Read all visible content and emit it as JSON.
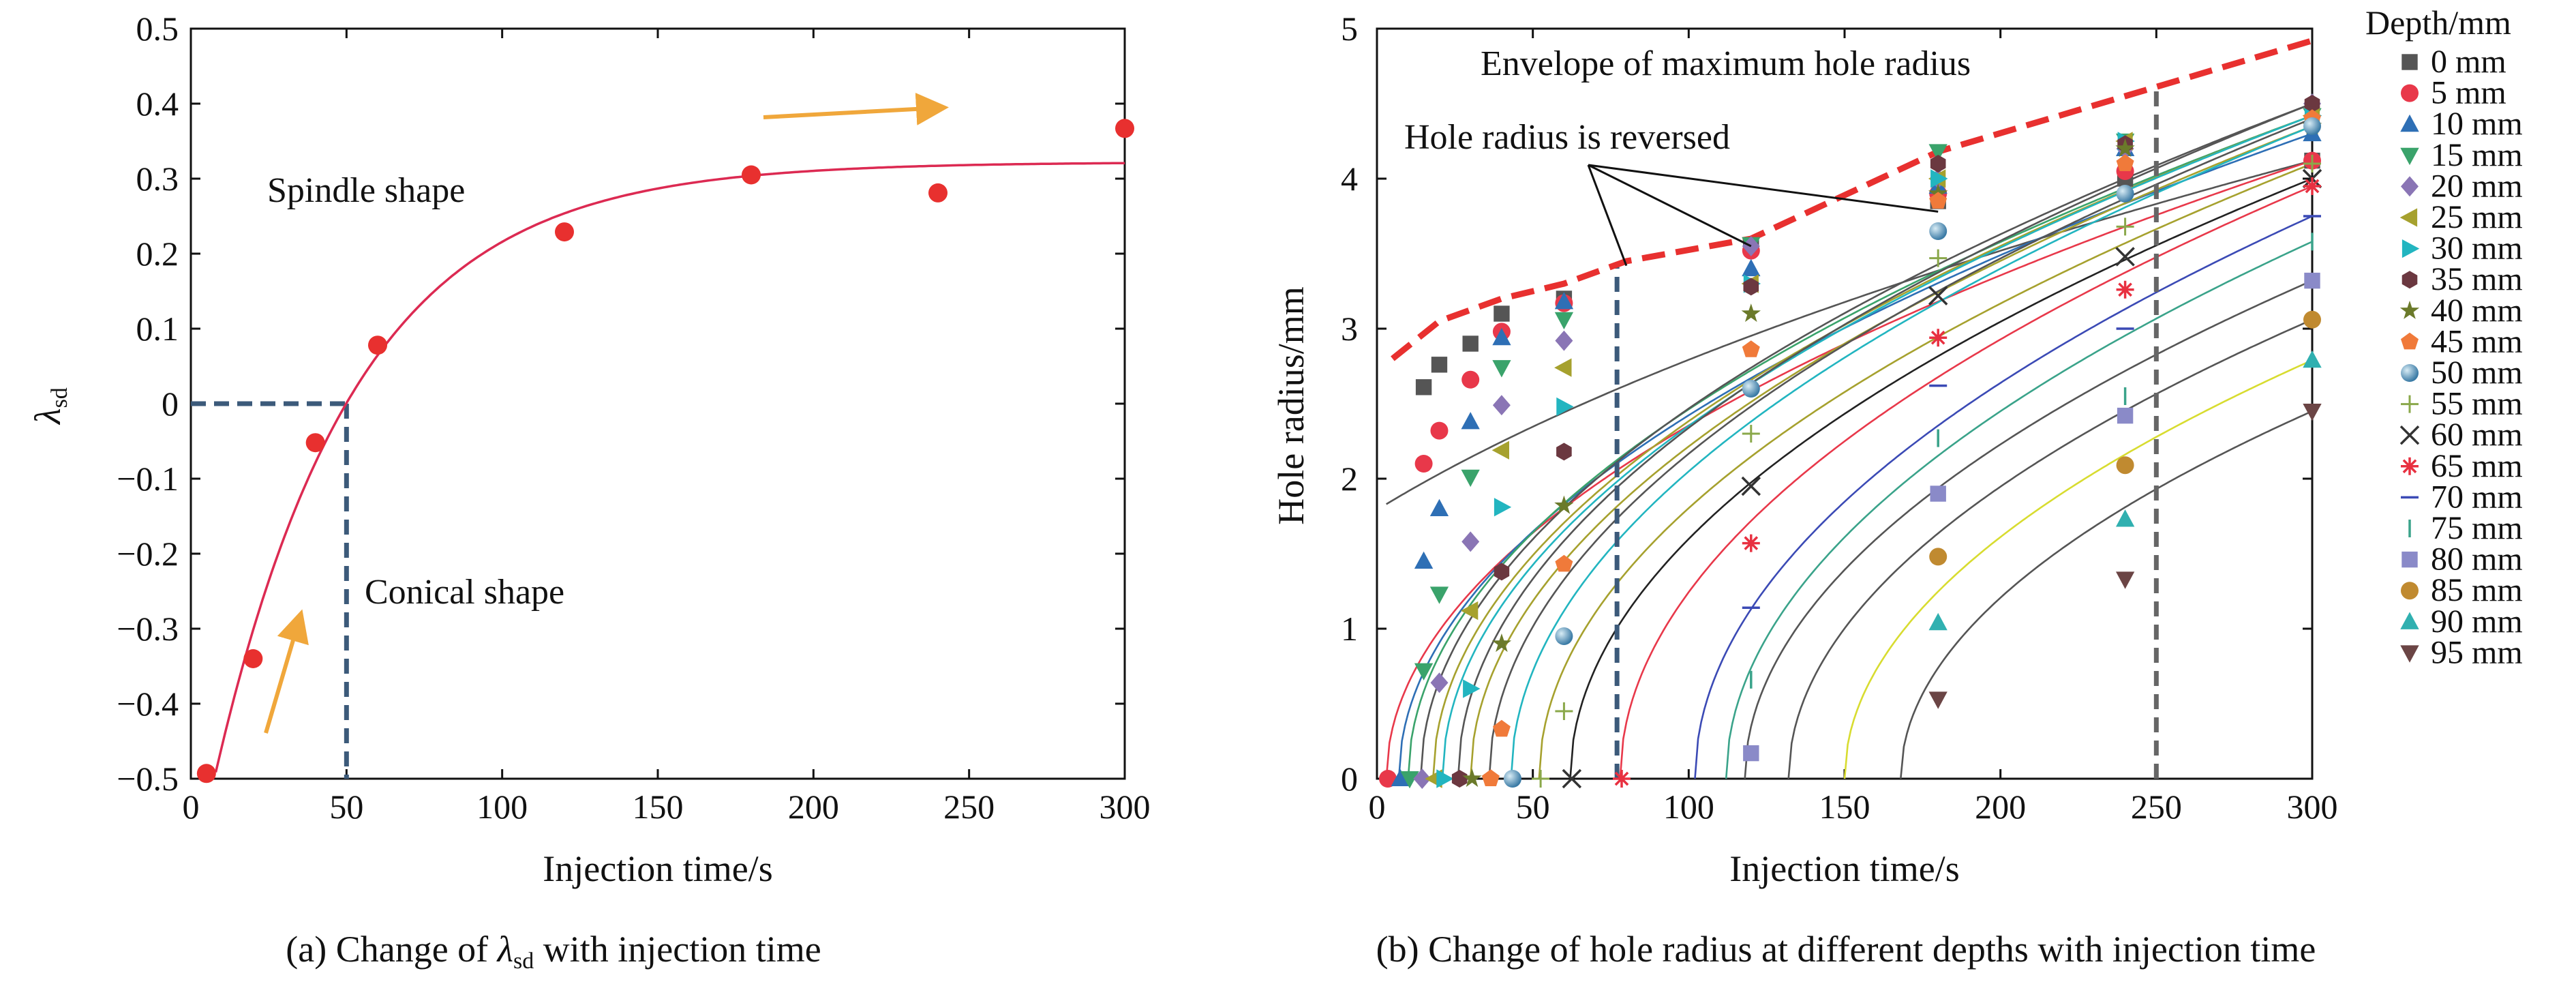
{
  "chart_data": [
    {
      "panel_id": "a",
      "type": "scatter",
      "caption_prefix": "(a) Change of ",
      "caption_symbol": "λ",
      "caption_sub": "sd",
      "caption_suffix": " with injection time",
      "xlabel": "Injection time/s",
      "ylabel_symbol": "λ",
      "ylabel_sub": "sd",
      "xlim": [
        0,
        300
      ],
      "ylim": [
        -0.5,
        0.5
      ],
      "xticks": [
        0,
        50,
        100,
        150,
        200,
        250,
        300
      ],
      "yticks": [
        -0.5,
        -0.4,
        -0.3,
        -0.2,
        -0.1,
        0,
        0.1,
        0.2,
        0.3,
        0.4,
        0.5
      ],
      "ytick_labels": [
        "−0.5",
        "−0.4",
        "−0.3",
        "−0.2",
        "−0.1",
        "0",
        "0.1",
        "0.2",
        "0.3",
        "0.4",
        "0.5"
      ],
      "points": {
        "x": [
          5,
          20,
          40,
          60,
          120,
          180,
          240,
          300
        ],
        "y": [
          -0.493,
          -0.34,
          -0.052,
          0.078,
          0.229,
          0.305,
          0.281,
          0.367
        ]
      },
      "fit_curve": {
        "formula": "y = 0.322 - 0.971*exp(-x/45.2)",
        "a": 0.322,
        "b": 0.971,
        "tau": 45.2,
        "color": "#dc2a52"
      },
      "point_color": "#e8302f",
      "dashed_color": "#3c5a7a",
      "threshold": {
        "x": 50,
        "y": 0
      },
      "arrow_color": "#f0a73b",
      "annotations": [
        "Spindle shape",
        "Conical shape"
      ],
      "grid": false
    },
    {
      "panel_id": "b",
      "type": "scatter",
      "caption": "(b) Change of hole radius at different depths with injection time",
      "xlabel": "Injection time/s",
      "ylabel": "Hole radius/mm",
      "xlim": [
        0,
        300
      ],
      "ylim": [
        0,
        5
      ],
      "xticks": [
        0,
        50,
        100,
        150,
        200,
        250,
        300
      ],
      "yticks": [
        0,
        1,
        2,
        3,
        4,
        5
      ],
      "legend_title": "Depth/mm",
      "legend_position": "right-outside",
      "time_points": [
        5,
        10,
        15,
        20,
        30,
        40,
        60,
        120,
        180,
        240,
        300
      ],
      "series": [
        {
          "name": "0 mm",
          "color": "#555555",
          "marker": "square",
          "curve_color": "#555555",
          "t0": -70,
          "values": [
            2.61,
            2.76,
            2.9,
            3.1,
            3.2,
            3.55,
            3.85,
            4.0,
            4.12
          ]
        },
        {
          "name": "5 mm",
          "color": "#e8384a",
          "marker": "circle",
          "curve_color": "#e8384a",
          "t0": 3,
          "values": [
            0,
            2.1,
            2.32,
            2.66,
            2.98,
            3.17,
            3.52,
            3.9,
            4.05,
            4.12
          ]
        },
        {
          "name": "10 mm",
          "color": "#2e6fb5",
          "marker": "triangle-up",
          "curve_color": "#2e6fb5",
          "t0": 7,
          "values": [
            0,
            1.45,
            1.8,
            2.38,
            2.94,
            3.18,
            3.4,
            3.95,
            4.2,
            4.3
          ]
        },
        {
          "name": "15 mm",
          "color": "#3aa36b",
          "marker": "triangle-down",
          "curve_color": "#3aa36b",
          "t0": 10,
          "values": [
            0,
            0.72,
            1.23,
            2.01,
            2.74,
            3.06,
            3.56,
            4.18,
            4.25,
            4.42
          ]
        },
        {
          "name": "20 mm",
          "color": "#8a75b5",
          "marker": "diamond",
          "curve_color": "#555555",
          "t0": 14,
          "values": [
            0,
            0.64,
            1.58,
            2.49,
            2.92,
            3.55,
            4.0,
            4.2,
            4.5
          ]
        },
        {
          "name": "25 mm",
          "color": "#a6a12e",
          "marker": "triangle-left",
          "curve_color": "#a6a12e",
          "t0": 18,
          "values": [
            0,
            1.12,
            2.19,
            2.74,
            3.3,
            4.0,
            4.25,
            4.42
          ]
        },
        {
          "name": "30 mm",
          "color": "#22b5c0",
          "marker": "triangle-right",
          "curve_color": "#22b5c0",
          "t0": 21,
          "values": [
            0,
            0.6,
            1.81,
            2.48,
            3.3,
            4.0,
            4.25,
            4.42
          ]
        },
        {
          "name": "35 mm",
          "color": "#6b3840",
          "marker": "hexagon",
          "curve_color": "#555555",
          "t0": 26,
          "values": [
            0,
            1.38,
            2.18,
            3.28,
            4.1,
            4.23,
            4.5
          ]
        },
        {
          "name": "40 mm",
          "color": "#6b7a2a",
          "marker": "star",
          "curve_color": "#a6a12e",
          "t0": 30,
          "values": [
            0,
            0.9,
            1.82,
            3.1,
            3.9,
            4.2,
            4.35
          ]
        },
        {
          "name": "45 mm",
          "color": "#f07a3a",
          "marker": "pentagon",
          "curve_color": "#555555",
          "t0": 36,
          "values": [
            0,
            0.33,
            1.43,
            2.86,
            3.85,
            4.1,
            4.4
          ]
        },
        {
          "name": "50 mm",
          "color": "#5a96b5",
          "marker": "sphere",
          "curve_color": "#22b5c0",
          "t0": 43,
          "values": [
            0,
            0.95,
            2.6,
            3.65,
            3.9,
            4.35
          ]
        },
        {
          "name": "55 mm",
          "color": "#8aa84a",
          "marker": "plus",
          "curve_color": "#a6a12e",
          "t0": 52,
          "values": [
            0,
            0.45,
            2.3,
            3.47,
            3.68,
            4.1
          ]
        },
        {
          "name": "60 mm",
          "color": "#333333",
          "marker": "x",
          "curve_color": "#222222",
          "t0": 62,
          "values": [
            0,
            1.95,
            3.22,
            3.48,
            4.0
          ]
        },
        {
          "name": "65 mm",
          "color": "#e83040",
          "marker": "asterisk",
          "curve_color": "#e8384a",
          "t0": 78,
          "values": [
            0,
            1.57,
            2.94,
            3.26,
            3.95
          ]
        },
        {
          "name": "70 mm",
          "color": "#3b4ab5",
          "marker": "hline",
          "curve_color": "#3b4ab5",
          "t0": 102,
          "values": [
            1.14,
            2.62,
            3.0,
            3.75
          ]
        },
        {
          "name": "75 mm",
          "color": "#3aa38a",
          "marker": "vline",
          "curve_color": "#3aa38a",
          "t0": 112,
          "values": [
            0.66,
            2.27,
            2.55,
            3.58
          ]
        },
        {
          "name": "80 mm",
          "color": "#8a8ac8",
          "marker": "square",
          "curve_color": "#555555",
          "t0": 118,
          "values": [
            0.17,
            1.9,
            2.42,
            3.32
          ]
        },
        {
          "name": "85 mm",
          "color": "#c08a30",
          "marker": "circle",
          "curve_color": "#555555",
          "t0": 132,
          "values": [
            1.48,
            2.09,
            3.06
          ]
        },
        {
          "name": "90 mm",
          "color": "#30b0b0",
          "marker": "triangle-up",
          "curve_color": "#d8dc30",
          "t0": 150,
          "values": [
            1.04,
            1.73,
            2.79
          ]
        },
        {
          "name": "95 mm",
          "color": "#6b4545",
          "marker": "triangle-down",
          "curve_color": "#555555",
          "t0": 168,
          "values": [
            0.53,
            1.33,
            2.45
          ]
        }
      ],
      "envelope": {
        "label": "Envelope of maximum hole radius",
        "color": "#e8302f",
        "x": [
          5,
          20,
          40,
          60,
          80,
          120,
          180,
          240,
          300
        ],
        "y": [
          2.8,
          3.05,
          3.2,
          3.3,
          3.45,
          3.6,
          4.18,
          4.55,
          4.92
        ]
      },
      "reversal_note": "Hole radius is reversed",
      "vertical_lines": [
        {
          "x": 77,
          "color": "#3c5a7a"
        },
        {
          "x": 250,
          "color": "#666666"
        }
      ],
      "grid": false
    }
  ]
}
